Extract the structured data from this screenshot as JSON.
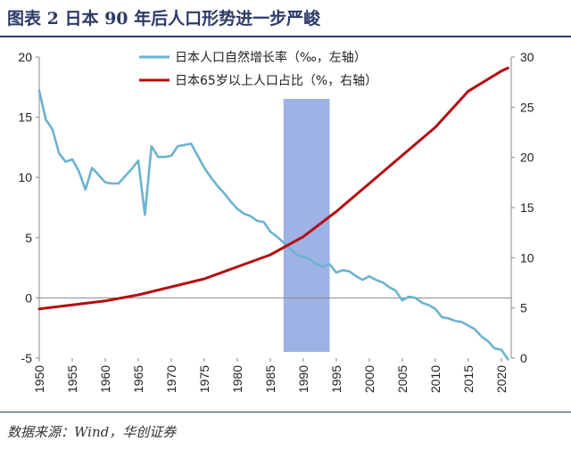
{
  "title": "图表 2 日本 90 年后人口形势进一步严峻",
  "source": "数据来源：Wind，华创证券",
  "chart_data": {
    "type": "line",
    "x_ticks": [
      1950,
      1955,
      1960,
      1965,
      1970,
      1975,
      1980,
      1985,
      1990,
      1995,
      2000,
      2005,
      2010,
      2015,
      2020
    ],
    "y_left": {
      "range": [
        -5,
        20
      ],
      "ticks": [
        -5,
        0,
        5,
        10,
        15,
        20
      ]
    },
    "y_right": {
      "range": [
        0,
        30
      ],
      "ticks": [
        0,
        5,
        10,
        15,
        20,
        25,
        30
      ]
    },
    "grid": false,
    "legend_placement": "top-center",
    "highlight_band": {
      "x_start": 1987,
      "x_end": 1994,
      "color": "#8ea4e0"
    },
    "series": [
      {
        "name": "日本人口自然增长率（‰，左轴）",
        "axis": "left",
        "color": "#6bb3d0",
        "x": [
          1950,
          1951,
          1952,
          1953,
          1954,
          1955,
          1956,
          1957,
          1958,
          1959,
          1960,
          1961,
          1962,
          1963,
          1964,
          1965,
          1966,
          1967,
          1968,
          1969,
          1970,
          1971,
          1972,
          1973,
          1974,
          1975,
          1976,
          1977,
          1978,
          1979,
          1980,
          1981,
          1982,
          1983,
          1984,
          1985,
          1986,
          1987,
          1988,
          1989,
          1990,
          1991,
          1992,
          1993,
          1994,
          1995,
          1996,
          1997,
          1998,
          1999,
          2000,
          2001,
          2002,
          2003,
          2004,
          2005,
          2006,
          2007,
          2008,
          2009,
          2010,
          2011,
          2012,
          2013,
          2014,
          2015,
          2016,
          2017,
          2018,
          2019,
          2020,
          2021
        ],
        "values": [
          17.2,
          14.8,
          14.0,
          12.0,
          11.3,
          11.5,
          10.5,
          9.0,
          10.8,
          10.2,
          9.6,
          9.5,
          9.5,
          10.1,
          10.7,
          11.4,
          6.9,
          12.6,
          11.7,
          11.7,
          11.8,
          12.6,
          12.7,
          12.8,
          11.8,
          10.8,
          10.0,
          9.3,
          8.7,
          8.0,
          7.4,
          7.0,
          6.8,
          6.4,
          6.3,
          5.5,
          5.1,
          4.6,
          4.1,
          3.6,
          3.4,
          3.2,
          2.8,
          2.6,
          2.8,
          2.1,
          2.3,
          2.2,
          1.8,
          1.5,
          1.8,
          1.5,
          1.3,
          0.9,
          0.6,
          -0.2,
          0.1,
          0.0,
          -0.4,
          -0.6,
          -0.9,
          -1.6,
          -1.7,
          -1.9,
          -2.0,
          -2.3,
          -2.6,
          -3.2,
          -3.6,
          -4.2,
          -4.3,
          -5.1
        ]
      },
      {
        "name": "日本65岁以上人口占比（%，右轴）",
        "axis": "right",
        "color": "#b40e12",
        "x": [
          1950,
          1955,
          1960,
          1965,
          1970,
          1975,
          1980,
          1985,
          1990,
          1995,
          2000,
          2005,
          2010,
          2015,
          2020,
          2021
        ],
        "values": [
          4.9,
          5.3,
          5.7,
          6.3,
          7.1,
          7.9,
          9.1,
          10.3,
          12.1,
          14.6,
          17.4,
          20.2,
          23.0,
          26.6,
          28.6,
          28.9
        ]
      }
    ]
  }
}
